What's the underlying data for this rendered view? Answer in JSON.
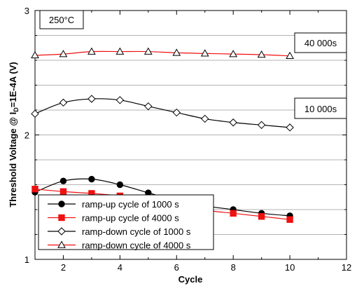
{
  "chart_data": {
    "type": "line",
    "xlabel": "Cycle",
    "ylabel": "Threshold Voltage @ I_D=1E-4A (V)",
    "ylabel_parts": {
      "pre": "Threshold Voltage @ I",
      "sub": "D",
      "post": "=1E-4A (V)"
    },
    "xlim": [
      1,
      12
    ],
    "ylim": [
      1,
      3
    ],
    "xticks": [
      2,
      4,
      6,
      8,
      10,
      12
    ],
    "xtick_labels": [
      "2",
      "4",
      "6",
      "8",
      "10",
      "12"
    ],
    "yticks": [
      1,
      2,
      3
    ],
    "ytick_labels": [
      "1",
      "2",
      "3"
    ],
    "y_minor_step": 0.2,
    "grid": "horizontal",
    "legend_position": "bottom-left",
    "annotations": {
      "temperature": "250°C",
      "upper_group": "40 000s",
      "lower_group": "10 000s"
    },
    "series": [
      {
        "name": "ramp-up cycle of 1000 s",
        "marker": "circle-filled",
        "color": "#000000",
        "x": [
          1,
          2,
          3,
          4,
          5,
          6,
          7,
          8,
          9,
          10
        ],
        "values": [
          1.54,
          1.63,
          1.645,
          1.6,
          1.535,
          1.475,
          1.43,
          1.4,
          1.37,
          1.35
        ]
      },
      {
        "name": "ramp-up cycle of 4000 s",
        "marker": "square-filled",
        "color": "#ee1111",
        "x": [
          1,
          2,
          3,
          4,
          5,
          6,
          7,
          8,
          9,
          10
        ],
        "values": [
          1.565,
          1.545,
          1.53,
          1.51,
          1.47,
          1.435,
          1.395,
          1.37,
          1.345,
          1.32
        ]
      },
      {
        "name": "ramp-down cycle of 1000 s",
        "marker": "diamond-open",
        "color": "#000000",
        "x": [
          1,
          2,
          3,
          4,
          5,
          6,
          7,
          8,
          9,
          10
        ],
        "values": [
          2.17,
          2.26,
          2.29,
          2.28,
          2.23,
          2.18,
          2.13,
          2.1,
          2.08,
          2.06
        ]
      },
      {
        "name": "ramp-down cycle of 4000 s",
        "marker": "triangle-open",
        "color": "#ee1111",
        "x": [
          1,
          2,
          3,
          4,
          5,
          6,
          7,
          8,
          9,
          10
        ],
        "values": [
          2.64,
          2.65,
          2.67,
          2.67,
          2.67,
          2.66,
          2.655,
          2.65,
          2.645,
          2.635
        ]
      }
    ]
  }
}
